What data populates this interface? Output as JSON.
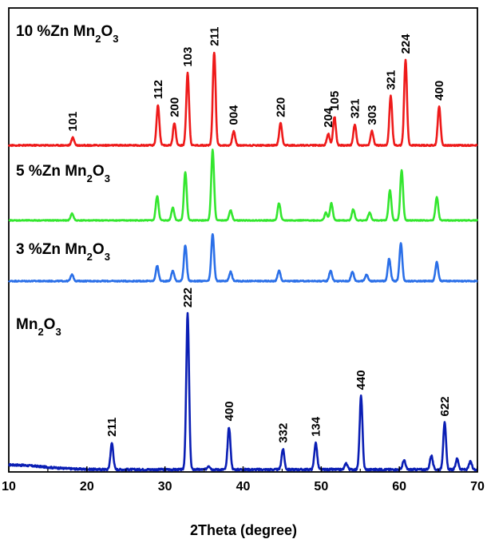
{
  "chart_data": {
    "type": "line",
    "title": "",
    "xlabel": "2Theta (degree)",
    "ylabel": "",
    "xlim": [
      10,
      70
    ],
    "x_ticks": [
      10,
      20,
      30,
      40,
      50,
      60,
      70
    ],
    "grid": false,
    "series": [
      {
        "name": "Mn2O3",
        "label_main": "Mn",
        "label_sub1": "2",
        "label_mid": "O",
        "label_sub2": "3",
        "color": "#0a1eb4",
        "baseline": 0.03,
        "noise": 0.006,
        "peaks": [
          {
            "x": 23.2,
            "h": 0.17,
            "label": "211"
          },
          {
            "x": 32.9,
            "h": 1.0,
            "label": "222"
          },
          {
            "x": 35.6,
            "h": 0.025
          },
          {
            "x": 38.2,
            "h": 0.27,
            "label": "400"
          },
          {
            "x": 45.1,
            "h": 0.13,
            "label": "332"
          },
          {
            "x": 49.3,
            "h": 0.17,
            "label": "134"
          },
          {
            "x": 53.2,
            "h": 0.04
          },
          {
            "x": 55.1,
            "h": 0.47,
            "label": "440"
          },
          {
            "x": 60.6,
            "h": 0.06
          },
          {
            "x": 64.1,
            "h": 0.09
          },
          {
            "x": 65.8,
            "h": 0.3,
            "label": "622"
          },
          {
            "x": 67.4,
            "h": 0.07
          },
          {
            "x": 69.1,
            "h": 0.05
          }
        ]
      },
      {
        "name": "3 %Zn Mn2O3",
        "label_main": "3 %Zn Mn",
        "label_sub1": "2",
        "label_mid": "O",
        "label_sub2": "3",
        "color": "#2a6fe8",
        "baseline": 0.0,
        "noise": 0.006,
        "peaks": [
          {
            "x": 18.1,
            "h": 0.07
          },
          {
            "x": 29.0,
            "h": 0.16
          },
          {
            "x": 31.0,
            "h": 0.11
          },
          {
            "x": 32.6,
            "h": 0.38
          },
          {
            "x": 36.1,
            "h": 0.5
          },
          {
            "x": 38.4,
            "h": 0.1
          },
          {
            "x": 44.6,
            "h": 0.11
          },
          {
            "x": 51.2,
            "h": 0.11
          },
          {
            "x": 54.0,
            "h": 0.1
          },
          {
            "x": 55.8,
            "h": 0.07
          },
          {
            "x": 58.7,
            "h": 0.24
          },
          {
            "x": 60.2,
            "h": 0.4
          },
          {
            "x": 64.8,
            "h": 0.2
          }
        ]
      },
      {
        "name": "5 %Zn Mn2O3",
        "label_main": "5 %Zn Mn",
        "label_sub1": "2",
        "label_mid": "O",
        "label_sub2": "3",
        "color": "#33e62e",
        "baseline": 0.0,
        "noise": 0.005,
        "peaks": [
          {
            "x": 18.1,
            "h": 0.08
          },
          {
            "x": 29.0,
            "h": 0.28
          },
          {
            "x": 31.0,
            "h": 0.15
          },
          {
            "x": 32.6,
            "h": 0.56
          },
          {
            "x": 36.1,
            "h": 0.82
          },
          {
            "x": 38.4,
            "h": 0.12
          },
          {
            "x": 44.6,
            "h": 0.2
          },
          {
            "x": 50.6,
            "h": 0.09
          },
          {
            "x": 51.3,
            "h": 0.2
          },
          {
            "x": 54.1,
            "h": 0.13
          },
          {
            "x": 56.2,
            "h": 0.09
          },
          {
            "x": 58.8,
            "h": 0.35
          },
          {
            "x": 60.3,
            "h": 0.58
          },
          {
            "x": 64.8,
            "h": 0.27
          }
        ]
      },
      {
        "name": "10 %Zn Mn2O3",
        "label_main": "10 %Zn Mn",
        "label_sub1": "2",
        "label_mid": "O",
        "label_sub2": "3",
        "color": "#ee1a1a",
        "baseline": 0.0,
        "noise": 0.005,
        "peaks": [
          {
            "x": 18.2,
            "h": 0.06,
            "label": "101"
          },
          {
            "x": 29.1,
            "h": 0.31,
            "label": "112"
          },
          {
            "x": 31.2,
            "h": 0.17,
            "label": "200"
          },
          {
            "x": 32.9,
            "h": 0.56,
            "label": "103"
          },
          {
            "x": 36.3,
            "h": 0.72,
            "label": "211"
          },
          {
            "x": 38.8,
            "h": 0.11,
            "label": "004"
          },
          {
            "x": 44.8,
            "h": 0.17,
            "label": "220"
          },
          {
            "x": 50.9,
            "h": 0.09,
            "label": "204"
          },
          {
            "x": 51.7,
            "h": 0.22,
            "label": "105"
          },
          {
            "x": 54.3,
            "h": 0.16,
            "label": "321"
          },
          {
            "x": 56.5,
            "h": 0.11,
            "label": "303"
          },
          {
            "x": 58.9,
            "h": 0.38,
            "label": "321"
          },
          {
            "x": 60.8,
            "h": 0.66,
            "label": "224"
          },
          {
            "x": 65.1,
            "h": 0.3,
            "label": "400"
          }
        ]
      }
    ]
  }
}
